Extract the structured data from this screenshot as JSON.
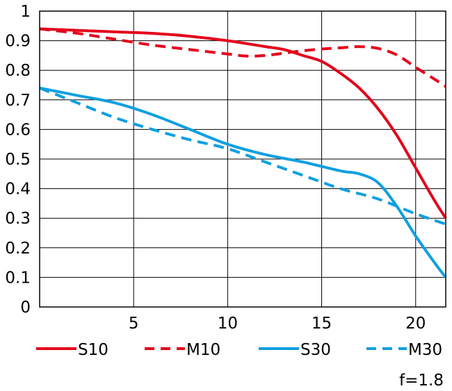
{
  "chart_data": {
    "type": "line",
    "title": "",
    "xlabel": "",
    "ylabel": "",
    "xlim": [
      0,
      21.6
    ],
    "ylim": [
      0,
      1
    ],
    "x_ticks": [
      5,
      10,
      15,
      20
    ],
    "x_tick_labels": [
      "5",
      "10",
      "15",
      "20"
    ],
    "y_ticks": [
      0,
      0.1,
      0.2,
      0.3,
      0.4,
      0.5,
      0.6,
      0.7,
      0.8,
      0.9,
      1
    ],
    "y_tick_labels": [
      "0",
      "0.1",
      "0.2",
      "0.3",
      "0.4",
      "0.5",
      "0.6",
      "0.7",
      "0.8",
      "0.9",
      "1"
    ],
    "grid": true,
    "legend_position": "bottom",
    "annotation": "f=1.8",
    "series": [
      {
        "name": "S10",
        "color": "#e3001b",
        "dash": "solid",
        "x": [
          0,
          2,
          4,
          6,
          8,
          10,
          12,
          13,
          14,
          15,
          16,
          17,
          18,
          19,
          20,
          21,
          21.6
        ],
        "y": [
          0.94,
          0.935,
          0.93,
          0.925,
          0.915,
          0.9,
          0.88,
          0.87,
          0.85,
          0.83,
          0.79,
          0.74,
          0.67,
          0.58,
          0.47,
          0.36,
          0.3
        ]
      },
      {
        "name": "M10",
        "color": "#e3001b",
        "dash": "dashed",
        "x": [
          0,
          2,
          4,
          6,
          8,
          10,
          11,
          12,
          13,
          14,
          15,
          16,
          17,
          18,
          19,
          20,
          21,
          21.6
        ],
        "y": [
          0.94,
          0.925,
          0.905,
          0.885,
          0.87,
          0.855,
          0.848,
          0.85,
          0.858,
          0.866,
          0.872,
          0.876,
          0.88,
          0.874,
          0.852,
          0.81,
          0.77,
          0.745
        ]
      },
      {
        "name": "S30",
        "color": "#0f9fe0",
        "dash": "solid",
        "x": [
          0,
          2,
          4,
          6,
          8,
          10,
          12,
          14,
          16,
          17,
          18,
          19,
          20,
          21,
          21.6
        ],
        "y": [
          0.74,
          0.715,
          0.69,
          0.65,
          0.6,
          0.55,
          0.515,
          0.49,
          0.46,
          0.45,
          0.42,
          0.34,
          0.24,
          0.15,
          0.1
        ]
      },
      {
        "name": "M30",
        "color": "#0f9fe0",
        "dash": "dashed",
        "x": [
          0,
          2,
          4,
          6,
          8,
          10,
          12,
          14,
          16,
          18,
          20,
          21.6
        ],
        "y": [
          0.74,
          0.69,
          0.64,
          0.6,
          0.565,
          0.535,
          0.49,
          0.445,
          0.4,
          0.365,
          0.315,
          0.28
        ]
      }
    ]
  }
}
